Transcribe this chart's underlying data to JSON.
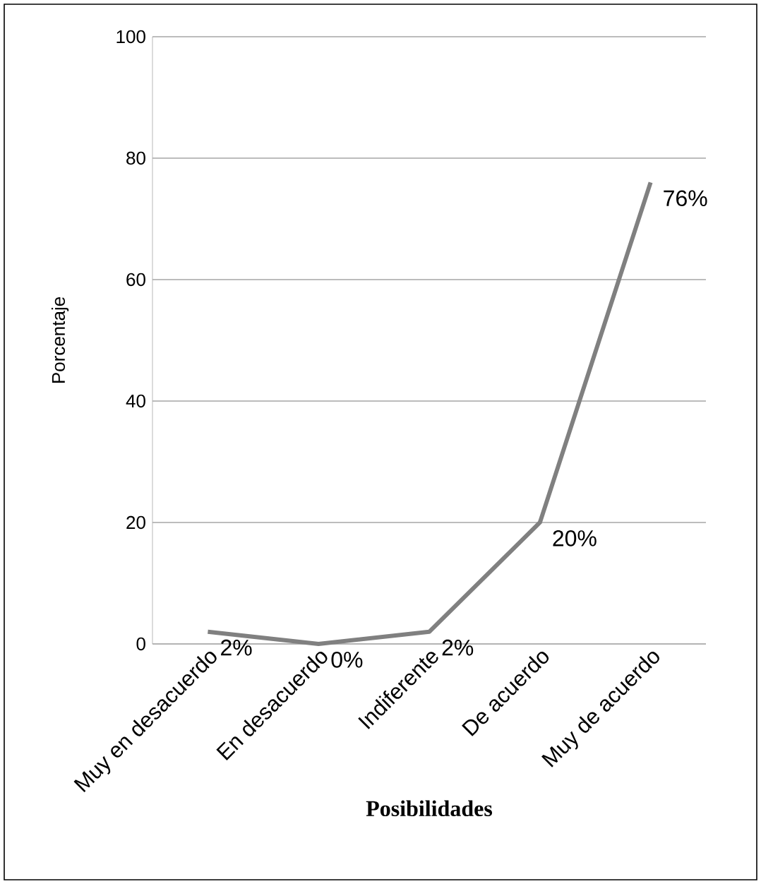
{
  "chart_data": {
    "type": "line",
    "xlabel": "Posibilidades",
    "ylabel": "Porcentaje",
    "categories": [
      "Muy en desacuerdo",
      "En desacuerdo",
      "Indiferente",
      "De acuerdo",
      "Muy de acuerdo"
    ],
    "values": [
      2,
      0,
      2,
      20,
      76
    ],
    "value_labels": [
      "2%",
      "0%",
      "2%",
      "20%",
      "76%"
    ],
    "color": "#808080",
    "ylim": [
      0,
      100
    ],
    "yticks": [
      0,
      20,
      40,
      60,
      80,
      100
    ],
    "grid": "y",
    "marker": "none",
    "line_style": "solid"
  }
}
